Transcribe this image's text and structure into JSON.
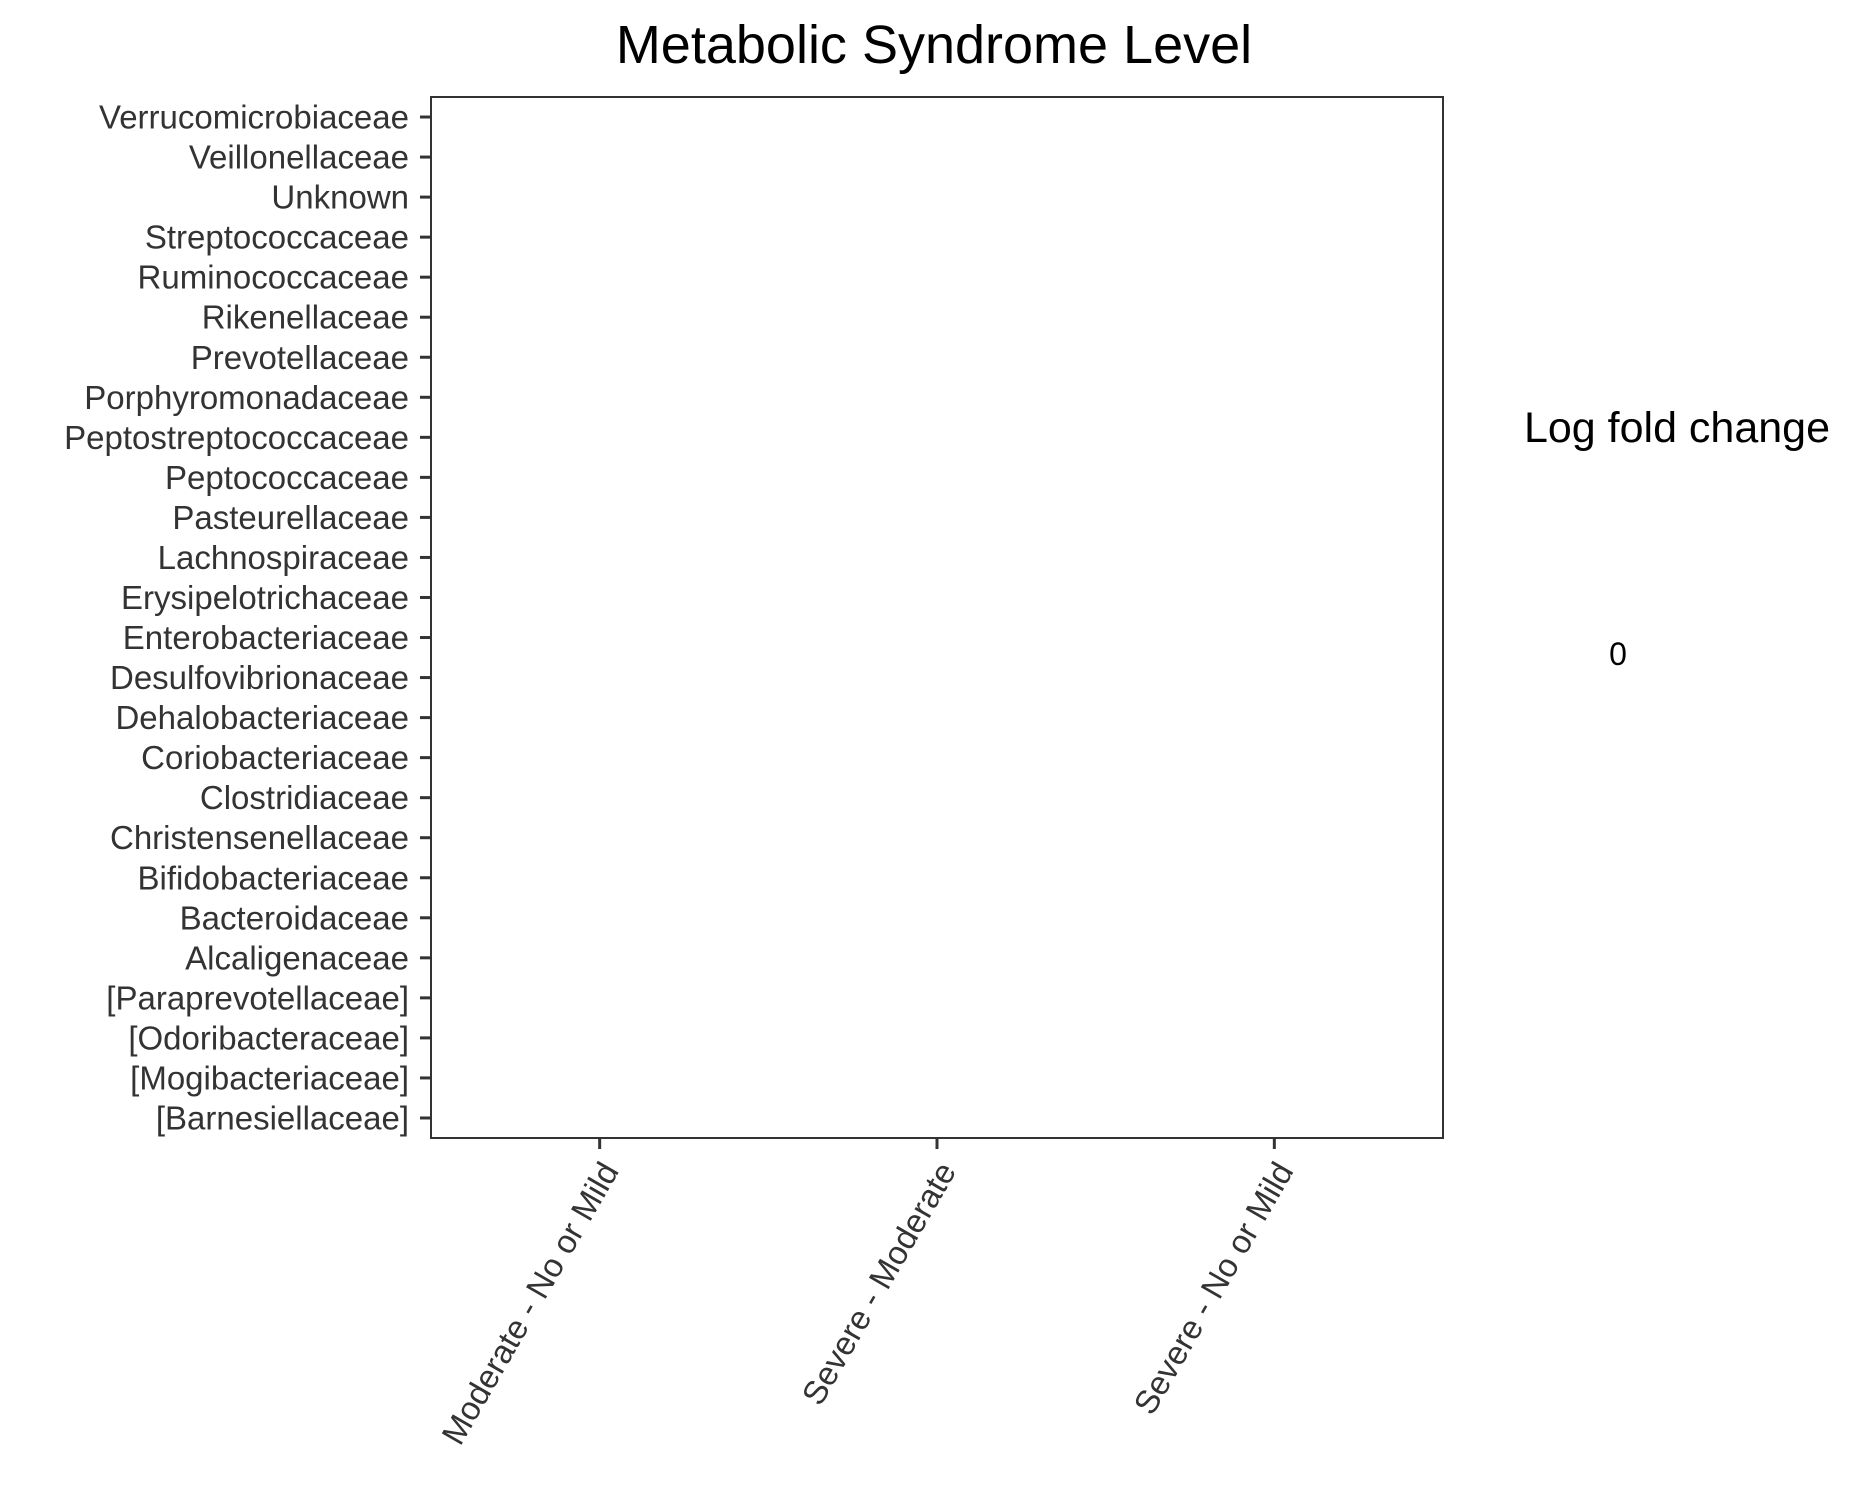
{
  "chart_data": {
    "type": "heatmap",
    "title": "Metabolic Syndrome Level",
    "xlabel": "",
    "ylabel": "",
    "categories_x": [
      "Moderate - No or Mild",
      "Severe - Moderate",
      "Severe - No or Mild"
    ],
    "categories_y": [
      "Verrucomicrobiaceae",
      "Veillonellaceae",
      "Unknown",
      "Streptococcaceae",
      "Ruminococcaceae",
      "Rikenellaceae",
      "Prevotellaceae",
      "Porphyromonadaceae",
      "Peptostreptococcaceae",
      "Peptococcaceae",
      "Pasteurellaceae",
      "Lachnospiraceae",
      "Erysipelotrichaceae",
      "Enterobacteriaceae",
      "Desulfovibrionaceae",
      "Dehalobacteriaceae",
      "Coriobacteriaceae",
      "Clostridiaceae",
      "Christensenellaceae",
      "Bifidobacteriaceae",
      "Bacteroidaceae",
      "Alcaligenaceae",
      "[Paraprevotellaceae]",
      "[Odoribacteraceae]",
      "[Mogibacteriaceae]",
      "[Barnesiellaceae]"
    ],
    "values": [],
    "grid": false,
    "legend": {
      "title": "Log fold change",
      "labels": [
        "0"
      ],
      "placement": "right"
    },
    "colors": {
      "panel_border": "#333333",
      "tick": "#333333",
      "text": "#333333",
      "title": "#000000"
    }
  }
}
